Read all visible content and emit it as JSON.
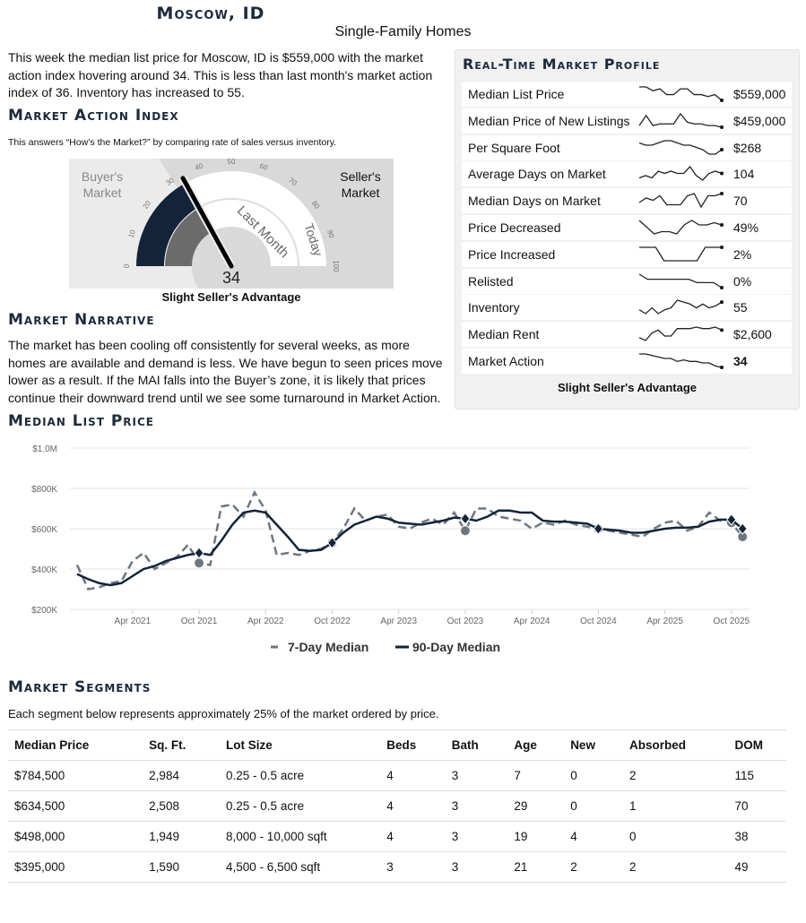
{
  "header": {
    "title": "Moscow, ID",
    "subtitle": "Single-Family Homes"
  },
  "intro": "This week the median list price for Moscow, ID is $559,000 with the market action index hovering around 34. This is less than last month's market action index of 36. Inventory has increased to 55.",
  "mai": {
    "heading": "Market Action Index",
    "description": "This answers “How’s the Market?” by comparing rate of sales versus inventory.",
    "gauge": {
      "today": 34,
      "last_month": 36,
      "buyers_label_1": "Buyer's",
      "buyers_label_2": "Market",
      "sellers_label_1": "Seller's",
      "sellers_label_2": "Market",
      "last_month_label": "Last Month",
      "today_label": "Today",
      "ticks": [
        "0",
        "10",
        "20",
        "30",
        "40",
        "50",
        "60",
        "70",
        "80",
        "90",
        "100"
      ],
      "value_label": "34",
      "colors": {
        "today": "#13233a",
        "last_month": "#6b6b6b"
      }
    },
    "verdict": "Slight Seller's Advantage"
  },
  "narrative": {
    "heading": "Market Narrative",
    "text": "The market has been cooling off consistently for several weeks, as more homes are available and demand is less. We have begun to seen prices move lower as a result. If the MAI falls into the Buyer’s zone, it is likely that prices continue their downward trend until we see some turnaround in Market Action."
  },
  "profile": {
    "heading": "Real-Time Market Profile",
    "rows": [
      {
        "label": "Median List Price",
        "value": "$559,000",
        "trend": [
          10,
          10,
          8,
          9,
          6,
          6,
          9,
          9,
          6,
          6,
          5,
          6,
          3
        ]
      },
      {
        "label": "Median Price of New Listings",
        "value": "$459,000",
        "trend": [
          4,
          10,
          4,
          5,
          5,
          5,
          11,
          6,
          5,
          5,
          4,
          4,
          3
        ]
      },
      {
        "label": "Per Square Foot",
        "value": "$268",
        "trend": [
          8,
          7,
          7,
          8,
          9,
          9,
          8,
          7,
          7,
          6,
          5,
          3,
          3,
          5
        ]
      },
      {
        "label": "Average Days on Market",
        "value": "104",
        "trend": [
          3,
          4,
          3,
          6,
          5,
          6,
          5,
          5,
          8,
          4,
          2,
          5,
          6,
          5
        ]
      },
      {
        "label": "Median Days on Market",
        "value": "70",
        "trend": [
          4,
          6,
          5,
          7,
          3,
          3,
          3,
          7,
          8,
          2,
          7,
          7,
          8
        ]
      },
      {
        "label": "Price Decreased",
        "value": "49%",
        "trend": [
          8,
          5,
          2,
          3,
          3,
          2,
          6,
          8,
          6,
          6,
          7,
          6
        ]
      },
      {
        "label": "Price Increased",
        "value": "2%",
        "trend": [
          7,
          7,
          7,
          0,
          0,
          0,
          0,
          0,
          7,
          7,
          7
        ]
      },
      {
        "label": "Relisted",
        "value": "0%",
        "trend": [
          8,
          5,
          5,
          5,
          5,
          5,
          5,
          3,
          3,
          3,
          0
        ]
      },
      {
        "label": "Inventory",
        "value": "55",
        "trend": [
          4,
          2,
          5,
          2,
          4,
          5,
          9,
          8,
          7,
          5,
          7,
          5,
          6,
          8
        ]
      },
      {
        "label": "Median Rent",
        "value": "$2,600",
        "trend": [
          2,
          0,
          5,
          7,
          3,
          3,
          8,
          8,
          8,
          9,
          8,
          8,
          9,
          7
        ]
      },
      {
        "label": "Market Action",
        "value": "34",
        "trend": [
          9,
          9,
          8,
          7,
          6,
          6,
          4,
          5,
          4,
          4,
          3,
          3,
          1,
          0
        ]
      }
    ],
    "verdict": "Slight Seller's Advantage"
  },
  "price_chart_heading": "Median List Price",
  "chart_data": {
    "type": "line",
    "x_start": "2020-11",
    "x_end": "2025-11",
    "x_step": "month",
    "y_ticks": [
      "$200K",
      "$400K",
      "$600K",
      "$800K",
      "$1.0M"
    ],
    "ylim": [
      200000,
      1000000
    ],
    "x_ticks": [
      "Apr 2021",
      "Oct 2021",
      "Apr 2022",
      "Oct 2022",
      "Apr 2023",
      "Oct 2023",
      "Apr 2024",
      "Oct 2024",
      "Apr 2025",
      "Oct 2025"
    ],
    "grid": true,
    "legend": "bottom",
    "series": [
      {
        "name": "7-Day Median",
        "color": "#6e7780",
        "style": "dashed",
        "values_k": [
          420,
          300,
          310,
          330,
          340,
          440,
          480,
          400,
          430,
          460,
          520,
          430,
          420,
          710,
          720,
          660,
          780,
          690,
          470,
          480,
          470,
          490,
          500,
          530,
          600,
          700,
          640,
          660,
          670,
          610,
          600,
          630,
          650,
          620,
          680,
          590,
          700,
          700,
          660,
          650,
          640,
          600,
          630,
          620,
          640,
          620,
          610,
          600,
          590,
          580,
          570,
          560,
          600,
          630,
          640,
          590,
          610,
          680,
          640,
          630,
          560
        ]
      },
      {
        "name": "90-Day Median",
        "color": "#13233a",
        "style": "solid",
        "values_k": [
          375,
          350,
          330,
          320,
          330,
          365,
          400,
          415,
          440,
          455,
          470,
          480,
          470,
          540,
          620,
          680,
          690,
          680,
          620,
          560,
          495,
          490,
          495,
          530,
          580,
          620,
          640,
          660,
          650,
          630,
          625,
          620,
          630,
          640,
          655,
          650,
          640,
          660,
          690,
          690,
          680,
          680,
          640,
          635,
          635,
          630,
          625,
          600,
          595,
          590,
          580,
          580,
          590,
          600,
          605,
          605,
          610,
          635,
          645,
          645,
          600
        ]
      }
    ]
  },
  "segments": {
    "heading": "Market Segments",
    "description": "Each segment below represents approximately 25% of the market ordered by price.",
    "columns": [
      "Median Price",
      "Sq. Ft.",
      "Lot Size",
      "Beds",
      "Bath",
      "Age",
      "New",
      "Absorbed",
      "DOM"
    ],
    "rows": [
      [
        "$784,500",
        "2,984",
        "0.25 - 0.5 acre",
        "4",
        "3",
        "7",
        "0",
        "2",
        "115"
      ],
      [
        "$634,500",
        "2,508",
        "0.25 - 0.5 acre",
        "4",
        "3",
        "29",
        "0",
        "1",
        "70"
      ],
      [
        "$498,000",
        "1,949",
        "8,000 - 10,000 sqft",
        "4",
        "3",
        "19",
        "4",
        "0",
        "38"
      ],
      [
        "$395,000",
        "1,590",
        "4,500 - 6,500 sqft",
        "3",
        "3",
        "21",
        "2",
        "2",
        "49"
      ]
    ]
  }
}
